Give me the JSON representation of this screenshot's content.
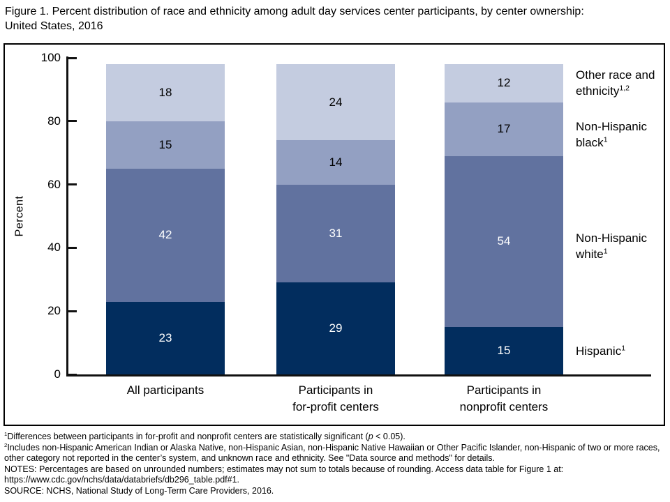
{
  "title": {
    "line1": "Figure 1. Percent distribution of race and ethnicity among adult day services center participants, by center ownership:",
    "line2": "United States, 2016"
  },
  "chart_data": {
    "type": "bar",
    "stacked": true,
    "title": "Figure 1. Percent distribution of race and ethnicity among adult day services center participants, by center ownership: United States, 2016",
    "ylabel": "Percent",
    "ylim": [
      0,
      100
    ],
    "yticks": [
      0,
      20,
      40,
      60,
      80,
      100
    ],
    "grid": false,
    "legend_position": "right",
    "categories": [
      [
        "All participants"
      ],
      [
        "Participants in",
        "for-profit centers"
      ],
      [
        "Participants in",
        "nonprofit centers"
      ]
    ],
    "series": [
      {
        "name": "Hispanic",
        "sup": "1",
        "color": "#022d5e",
        "label_color": "#ffffff",
        "values": [
          23,
          29,
          15
        ]
      },
      {
        "name": "Non-Hispanic white",
        "sup": "1",
        "color": "#61729f",
        "label_color": "#ffffff",
        "values": [
          42,
          31,
          54
        ]
      },
      {
        "name": "Non-Hispanic black",
        "sup": "1",
        "color": "#93a0c2",
        "label_color": "#000000",
        "values": [
          15,
          14,
          17
        ]
      },
      {
        "name": "Other race and ethnicity",
        "sup": "1,2",
        "color": "#c4cce0",
        "label_color": "#000000",
        "values": [
          18,
          24,
          12
        ]
      }
    ],
    "legend": [
      {
        "lines": [
          "Other race and",
          "ethnicity"
        ],
        "sup": "1,2"
      },
      {
        "lines": [
          "Non-Hispanic",
          "black"
        ],
        "sup": "1"
      },
      {
        "lines": [
          "Non-Hispanic",
          "white"
        ],
        "sup": "1"
      },
      {
        "lines": [
          "Hispanic"
        ],
        "sup": "1"
      }
    ]
  },
  "footnotes": {
    "f1": {
      "sup": "1",
      "pre": "Differences between participants in for-profit and nonprofit centers are statistically significant (",
      "italic": "p",
      "post": " < 0.05)."
    },
    "f2": {
      "sup": "2",
      "text": "Includes non-Hispanic American Indian or Alaska Native, non-Hispanic Asian, non-Hispanic Native Hawaiian or Other Pacific Islander, non-Hispanic of two or more races, other category not reported in the center’s system, and unknown race and ethnicity. See \"Data source and methods\" for details."
    },
    "notes": "NOTES: Percentages are based on unrounded numbers; estimates may not sum to totals because of rounding. Access data table for Figure 1 at: https://www.cdc.gov/nchs/data/databriefs/db296_table.pdf#1.",
    "source": "SOURCE: NCHS, National Study of Long-Term Care Providers, 2016."
  }
}
